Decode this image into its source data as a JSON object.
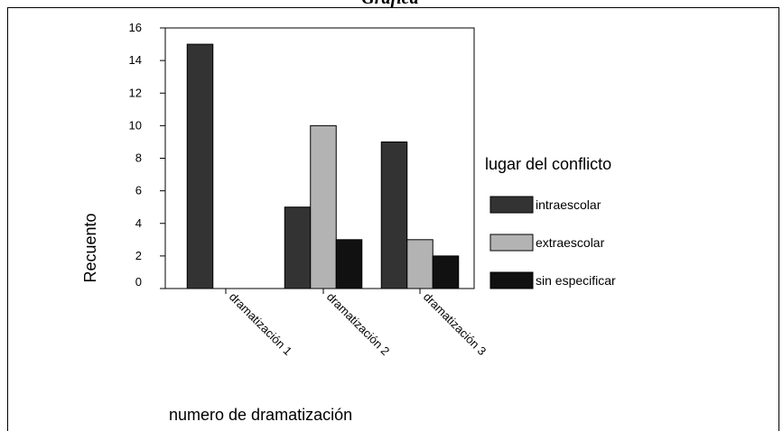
{
  "chart_data": {
    "type": "bar",
    "title": "Gráfica",
    "categories": [
      "dramatización 1",
      "dramatización 2",
      "dramatización 3"
    ],
    "series": [
      {
        "name": "intraescolar",
        "color": "#333333",
        "values": [
          15,
          5,
          9
        ]
      },
      {
        "name": "extraescolar",
        "color": "#b3b3b3",
        "values": [
          0,
          10,
          3
        ]
      },
      {
        "name": "sin especificar",
        "color": "#111111",
        "values": [
          0,
          3,
          2
        ]
      }
    ],
    "ylim": [
      0,
      16
    ],
    "yticks": [
      0,
      2,
      4,
      6,
      8,
      10,
      12,
      14,
      16
    ],
    "ylabel": "Recuento",
    "xlabel": "numero de dramatización",
    "legend_title": "lugar del conflicto",
    "legend": "right"
  }
}
